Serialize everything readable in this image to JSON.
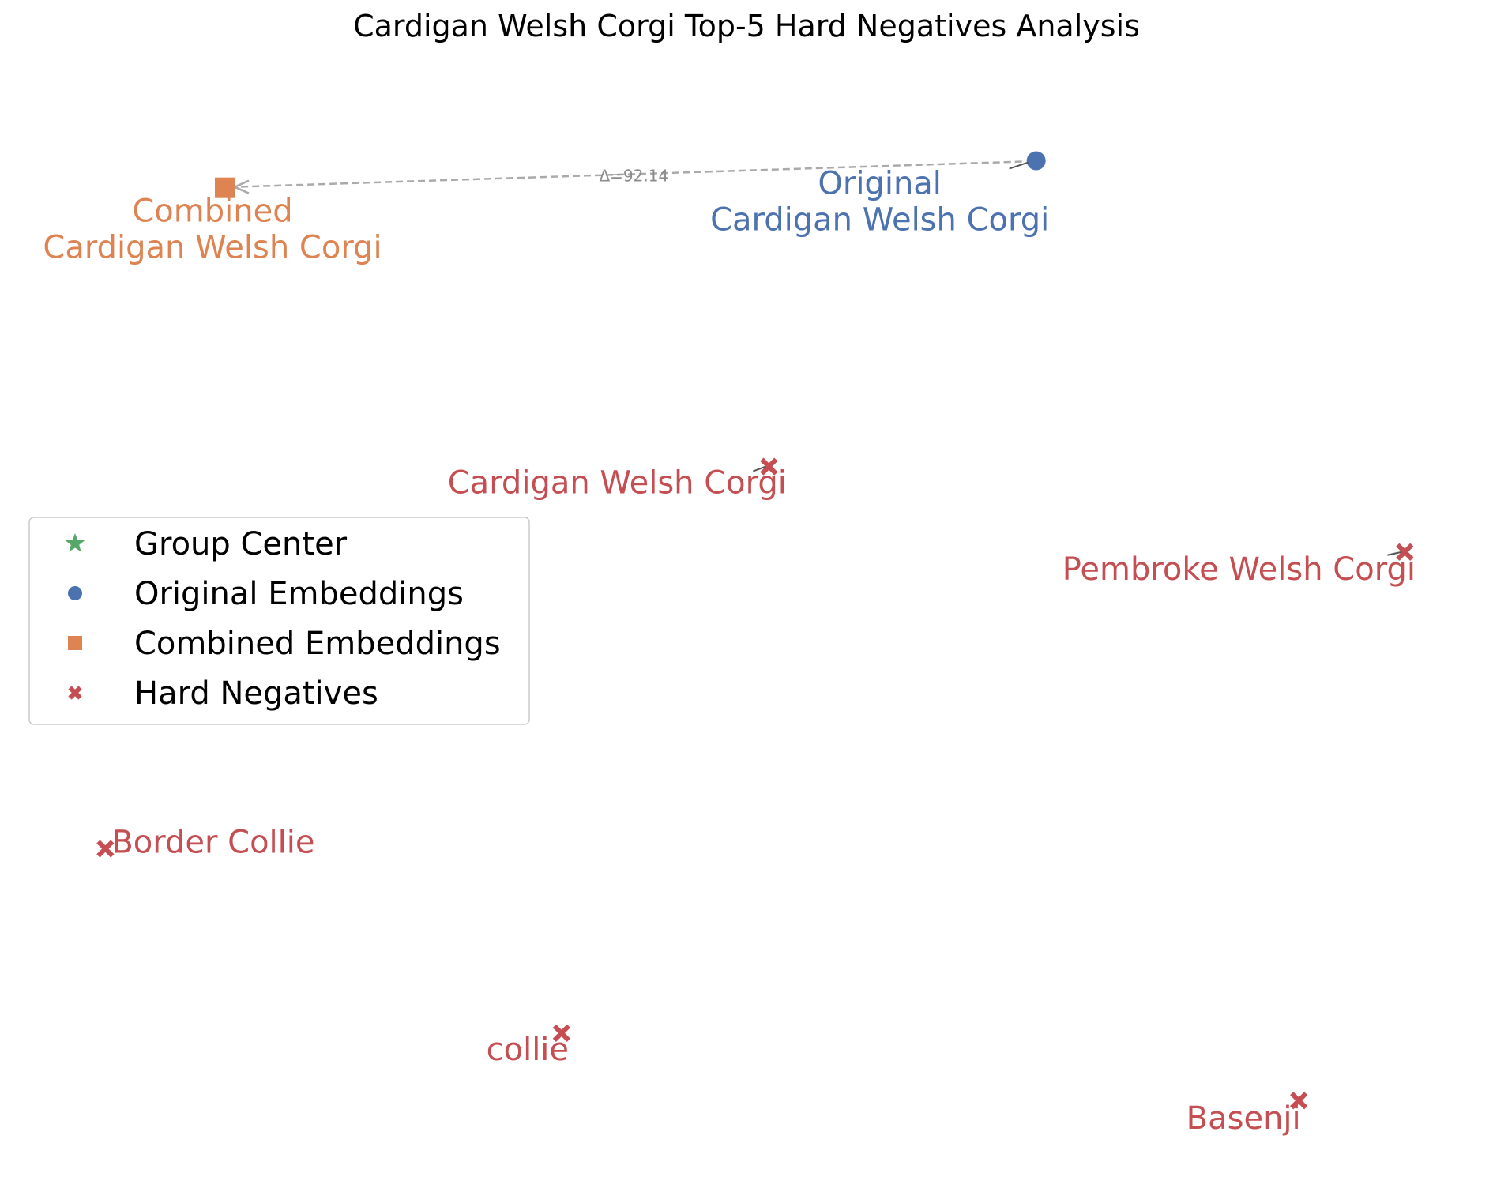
{
  "chart_data": {
    "type": "scatter",
    "title": "Cardigan Welsh Corgi Top-5 Hard Negatives Analysis",
    "xlabel": "",
    "ylabel": "",
    "axes_visible": false,
    "grid": false,
    "legend": {
      "placement": "center-left",
      "entries": [
        {
          "key": "center",
          "label": "Group Center",
          "marker": "star",
          "color": "#55a868"
        },
        {
          "key": "original",
          "label": "Original Embeddings",
          "marker": "circle",
          "color": "#4c72b0"
        },
        {
          "key": "combined",
          "label": "Combined Embeddings",
          "marker": "square",
          "color": "#dd8452"
        },
        {
          "key": "negative",
          "label": "Hard Negatives",
          "marker": "x",
          "color": "#c44e52"
        }
      ]
    },
    "original": {
      "name": "Original\nCardigan Welsh Corgi",
      "x": 10.9,
      "y": 11.3,
      "color": "#4c72b0"
    },
    "combined": {
      "name": "Combined\nCardigan Welsh Corgi",
      "x": 2.1,
      "y": 11.0,
      "color": "#dd8452"
    },
    "shift_annotation": "Δ=92.14",
    "hard_negatives": [
      {
        "name": "Cardigan Welsh Corgi",
        "x": 8.0,
        "y": 7.9
      },
      {
        "name": "Pembroke Welsh Corgi",
        "x": 14.9,
        "y": 6.95
      },
      {
        "name": "Border Collie",
        "x": 0.8,
        "y": 3.65
      },
      {
        "name": "collie",
        "x": 5.75,
        "y": 1.6
      },
      {
        "name": "Basenji",
        "x": 13.75,
        "y": 0.85
      }
    ],
    "hard_negative_color": "#c44e52"
  }
}
